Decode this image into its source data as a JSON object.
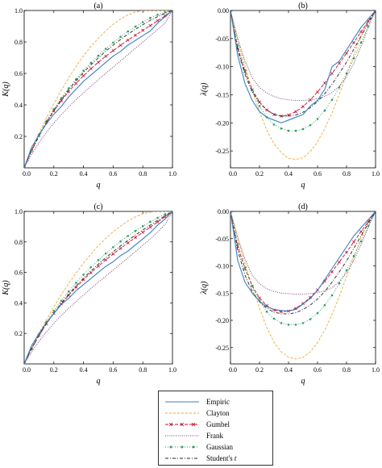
{
  "colors": {
    "Empiric": "#3a7fc1",
    "Clayton": "#f0a830",
    "Gumbel": "#c8102e",
    "Frank": "#6a2c70",
    "Gaussian": "#2e9e62",
    "Students_t": "#222222"
  },
  "legend": {
    "entries": [
      {
        "name": "Empiric",
        "key": "Empiric",
        "dash": "",
        "marker": "none"
      },
      {
        "name": "Clayton",
        "key": "Clayton",
        "dash": "3,2",
        "marker": "none"
      },
      {
        "name": "Gumbel",
        "key": "Gumbel",
        "dash": "4,2",
        "marker": "x"
      },
      {
        "name": "Frank",
        "key": "Frank",
        "dash": "1,1.6",
        "marker": "none"
      },
      {
        "name": "Gaussian",
        "key": "Gaussian",
        "dash": "1,2",
        "marker": "dot"
      },
      {
        "name": "Student's",
        "suffix": "t",
        "key": "Students_t",
        "dash": "4,2,1,2",
        "marker": "none"
      }
    ]
  },
  "chart_data": [
    {
      "panel": "(a)",
      "type": "line",
      "xlabel": "q",
      "ylabel": "K(q)",
      "xlim": [
        0,
        1
      ],
      "ylim": [
        0,
        1
      ],
      "xticks": [
        "0.0",
        "0.2",
        "0.4",
        "0.6",
        "0.8",
        "1.0"
      ],
      "yticks": [
        "0.2",
        "0.4",
        "0.6",
        "0.8",
        "1.0"
      ],
      "x": [
        0,
        0.05,
        0.1,
        0.15,
        0.2,
        0.25,
        0.3,
        0.35,
        0.4,
        0.45,
        0.5,
        0.55,
        0.6,
        0.65,
        0.7,
        0.75,
        0.8,
        0.85,
        0.9,
        0.95,
        1.0
      ],
      "series": [
        {
          "name": "Empiric",
          "values": [
            0,
            0.13,
            0.21,
            0.28,
            0.34,
            0.39,
            0.45,
            0.5,
            0.55,
            0.59,
            0.63,
            0.67,
            0.71,
            0.74,
            0.78,
            0.81,
            0.84,
            0.87,
            0.92,
            0.96,
            1.0
          ]
        },
        {
          "name": "Clayton",
          "values": [
            0,
            0.115,
            0.219,
            0.317,
            0.408,
            0.493,
            0.572,
            0.644,
            0.711,
            0.771,
            0.824,
            0.871,
            0.912,
            0.946,
            0.972,
            0.99,
            1.0,
            1.0,
            1.0,
            1.0,
            1.0
          ]
        },
        {
          "name": "Gumbel",
          "values": [
            0,
            0.11,
            0.205,
            0.288,
            0.361,
            0.426,
            0.484,
            0.537,
            0.585,
            0.63,
            0.671,
            0.709,
            0.745,
            0.779,
            0.812,
            0.843,
            0.874,
            0.904,
            0.935,
            0.966,
            1.0
          ]
        },
        {
          "name": "Frank",
          "values": [
            0,
            0.085,
            0.16,
            0.226,
            0.285,
            0.338,
            0.387,
            0.433,
            0.477,
            0.519,
            0.56,
            0.6,
            0.64,
            0.68,
            0.72,
            0.76,
            0.8,
            0.84,
            0.88,
            0.92,
            1.0
          ]
        },
        {
          "name": "Gaussian",
          "values": [
            0,
            0.112,
            0.21,
            0.296,
            0.373,
            0.442,
            0.505,
            0.563,
            0.617,
            0.667,
            0.713,
            0.756,
            0.796,
            0.833,
            0.867,
            0.898,
            0.926,
            0.952,
            0.973,
            0.989,
            1.0
          ]
        },
        {
          "name": "Student's t",
          "values": [
            0,
            0.108,
            0.203,
            0.288,
            0.364,
            0.433,
            0.496,
            0.553,
            0.606,
            0.654,
            0.699,
            0.741,
            0.78,
            0.816,
            0.85,
            0.881,
            0.91,
            0.937,
            0.961,
            0.982,
            1.0
          ]
        }
      ]
    },
    {
      "panel": "(b)",
      "type": "line",
      "xlabel": "q",
      "ylabel": "λ(q)",
      "xlim": [
        0,
        1
      ],
      "ylim": [
        -0.28,
        0
      ],
      "xticks": [
        "0.0",
        "0.2",
        "0.4",
        "0.6",
        "0.8",
        "1.0"
      ],
      "yticks": [
        "0.00",
        "-0.05",
        "-0.10",
        "-0.15",
        "-0.20",
        "-0.25"
      ],
      "x": [
        0,
        0.05,
        0.1,
        0.15,
        0.2,
        0.25,
        0.3,
        0.35,
        0.4,
        0.45,
        0.5,
        0.55,
        0.6,
        0.65,
        0.7,
        0.75,
        0.8,
        0.85,
        0.9,
        0.95,
        1.0
      ],
      "series": [
        {
          "name": "Empiric",
          "values": [
            0,
            -0.08,
            -0.13,
            -0.16,
            -0.18,
            -0.19,
            -0.195,
            -0.2,
            -0.195,
            -0.19,
            -0.185,
            -0.17,
            -0.16,
            -0.14,
            -0.1,
            -0.09,
            -0.07,
            -0.05,
            -0.03,
            -0.015,
            0
          ]
        },
        {
          "name": "Clayton",
          "values": [
            0,
            -0.052,
            -0.099,
            -0.142,
            -0.18,
            -0.213,
            -0.237,
            -0.253,
            -0.263,
            -0.265,
            -0.262,
            -0.251,
            -0.234,
            -0.21,
            -0.182,
            -0.149,
            -0.114,
            -0.079,
            -0.045,
            -0.016,
            0
          ]
        },
        {
          "name": "Gumbel",
          "values": [
            0,
            -0.068,
            -0.109,
            -0.141,
            -0.163,
            -0.177,
            -0.185,
            -0.188,
            -0.186,
            -0.18,
            -0.171,
            -0.159,
            -0.145,
            -0.129,
            -0.112,
            -0.094,
            -0.076,
            -0.057,
            -0.038,
            -0.019,
            0
          ]
        },
        {
          "name": "Frank",
          "values": [
            0,
            -0.05,
            -0.09,
            -0.12,
            -0.137,
            -0.147,
            -0.153,
            -0.157,
            -0.159,
            -0.16,
            -0.16,
            -0.159,
            -0.157,
            -0.153,
            -0.146,
            -0.135,
            -0.118,
            -0.094,
            -0.064,
            -0.03,
            0
          ]
        },
        {
          "name": "Gaussian",
          "values": [
            0,
            -0.062,
            -0.106,
            -0.142,
            -0.17,
            -0.19,
            -0.203,
            -0.21,
            -0.214,
            -0.214,
            -0.211,
            -0.204,
            -0.193,
            -0.178,
            -0.159,
            -0.137,
            -0.112,
            -0.085,
            -0.057,
            -0.028,
            0
          ]
        },
        {
          "name": "Student's t",
          "values": [
            0,
            -0.07,
            -0.114,
            -0.145,
            -0.164,
            -0.177,
            -0.185,
            -0.188,
            -0.188,
            -0.186,
            -0.181,
            -0.173,
            -0.162,
            -0.148,
            -0.131,
            -0.112,
            -0.092,
            -0.069,
            -0.046,
            -0.022,
            0
          ]
        }
      ]
    },
    {
      "panel": "(c)",
      "type": "line",
      "xlabel": "q",
      "ylabel": "K(q)",
      "xlim": [
        0,
        1
      ],
      "ylim": [
        0,
        1
      ],
      "xticks": [
        "0.0",
        "0.2",
        "0.4",
        "0.6",
        "0.8",
        "1.0"
      ],
      "yticks": [
        "0.2",
        "0.4",
        "0.6",
        "0.8",
        "1.0"
      ],
      "x": [
        0,
        0.05,
        0.1,
        0.15,
        0.2,
        0.25,
        0.3,
        0.35,
        0.4,
        0.45,
        0.5,
        0.55,
        0.6,
        0.65,
        0.7,
        0.75,
        0.8,
        0.85,
        0.9,
        0.95,
        1.0
      ],
      "series": [
        {
          "name": "Empiric",
          "values": [
            0,
            0.12,
            0.2,
            0.27,
            0.33,
            0.39,
            0.43,
            0.48,
            0.52,
            0.56,
            0.6,
            0.64,
            0.67,
            0.71,
            0.74,
            0.78,
            0.82,
            0.86,
            0.91,
            0.95,
            1.0
          ]
        },
        {
          "name": "Clayton",
          "values": [
            0,
            0.105,
            0.2,
            0.29,
            0.374,
            0.453,
            0.527,
            0.596,
            0.661,
            0.72,
            0.774,
            0.823,
            0.866,
            0.904,
            0.937,
            0.964,
            0.984,
            0.996,
            1.0,
            1.0,
            1.0
          ]
        },
        {
          "name": "Gumbel",
          "values": [
            0,
            0.1,
            0.187,
            0.263,
            0.331,
            0.393,
            0.45,
            0.503,
            0.552,
            0.598,
            0.641,
            0.682,
            0.721,
            0.758,
            0.794,
            0.829,
            0.863,
            0.897,
            0.931,
            0.965,
            1.0
          ]
        },
        {
          "name": "Frank",
          "values": [
            0,
            0.078,
            0.148,
            0.21,
            0.266,
            0.317,
            0.364,
            0.409,
            0.452,
            0.494,
            0.535,
            0.575,
            0.615,
            0.655,
            0.695,
            0.736,
            0.778,
            0.82,
            0.865,
            0.915,
            1.0
          ]
        },
        {
          "name": "Gaussian",
          "values": [
            0,
            0.103,
            0.194,
            0.275,
            0.348,
            0.414,
            0.475,
            0.532,
            0.585,
            0.634,
            0.681,
            0.724,
            0.765,
            0.803,
            0.839,
            0.872,
            0.903,
            0.932,
            0.958,
            0.981,
            1.0
          ]
        },
        {
          "name": "Student's t",
          "values": [
            0,
            0.099,
            0.186,
            0.264,
            0.334,
            0.398,
            0.457,
            0.511,
            0.562,
            0.609,
            0.654,
            0.696,
            0.736,
            0.774,
            0.81,
            0.845,
            0.878,
            0.91,
            0.941,
            0.971,
            1.0
          ]
        }
      ]
    },
    {
      "panel": "(d)",
      "type": "line",
      "xlabel": "q",
      "ylabel": "λ(q)",
      "xlim": [
        0,
        1
      ],
      "ylim": [
        -0.28,
        0
      ],
      "xticks": [
        "0.0",
        "0.2",
        "0.4",
        "0.6",
        "0.8",
        "1.0"
      ],
      "yticks": [
        "0.00",
        "-0.05",
        "-0.10",
        "-0.15",
        "-0.20",
        "-0.25"
      ],
      "x": [
        0,
        0.05,
        0.1,
        0.15,
        0.2,
        0.25,
        0.3,
        0.35,
        0.4,
        0.45,
        0.5,
        0.55,
        0.6,
        0.65,
        0.7,
        0.75,
        0.8,
        0.85,
        0.9,
        0.95,
        1.0
      ],
      "series": [
        {
          "name": "Empiric",
          "values": [
            0,
            -0.09,
            -0.13,
            -0.15,
            -0.165,
            -0.175,
            -0.18,
            -0.182,
            -0.183,
            -0.18,
            -0.17,
            -0.16,
            -0.145,
            -0.125,
            -0.105,
            -0.085,
            -0.065,
            -0.045,
            -0.03,
            -0.015,
            0
          ]
        },
        {
          "name": "Clayton",
          "values": [
            0,
            -0.049,
            -0.095,
            -0.138,
            -0.178,
            -0.213,
            -0.24,
            -0.258,
            -0.268,
            -0.271,
            -0.268,
            -0.258,
            -0.241,
            -0.218,
            -0.189,
            -0.156,
            -0.12,
            -0.084,
            -0.049,
            -0.018,
            0
          ]
        },
        {
          "name": "Gumbel",
          "values": [
            0,
            -0.065,
            -0.105,
            -0.137,
            -0.159,
            -0.173,
            -0.181,
            -0.184,
            -0.183,
            -0.178,
            -0.169,
            -0.158,
            -0.144,
            -0.128,
            -0.111,
            -0.093,
            -0.075,
            -0.056,
            -0.037,
            -0.019,
            0
          ]
        },
        {
          "name": "Frank",
          "values": [
            0,
            -0.048,
            -0.088,
            -0.117,
            -0.133,
            -0.142,
            -0.147,
            -0.15,
            -0.151,
            -0.152,
            -0.152,
            -0.151,
            -0.149,
            -0.146,
            -0.14,
            -0.129,
            -0.113,
            -0.09,
            -0.061,
            -0.029,
            0
          ]
        },
        {
          "name": "Gaussian",
          "values": [
            0,
            -0.06,
            -0.103,
            -0.137,
            -0.164,
            -0.184,
            -0.197,
            -0.205,
            -0.208,
            -0.208,
            -0.205,
            -0.198,
            -0.187,
            -0.172,
            -0.154,
            -0.132,
            -0.108,
            -0.082,
            -0.055,
            -0.027,
            0
          ]
        },
        {
          "name": "Student's t",
          "values": [
            0,
            -0.072,
            -0.117,
            -0.147,
            -0.166,
            -0.178,
            -0.185,
            -0.188,
            -0.188,
            -0.186,
            -0.18,
            -0.172,
            -0.161,
            -0.147,
            -0.13,
            -0.111,
            -0.091,
            -0.068,
            -0.045,
            -0.022,
            0
          ]
        }
      ]
    }
  ]
}
